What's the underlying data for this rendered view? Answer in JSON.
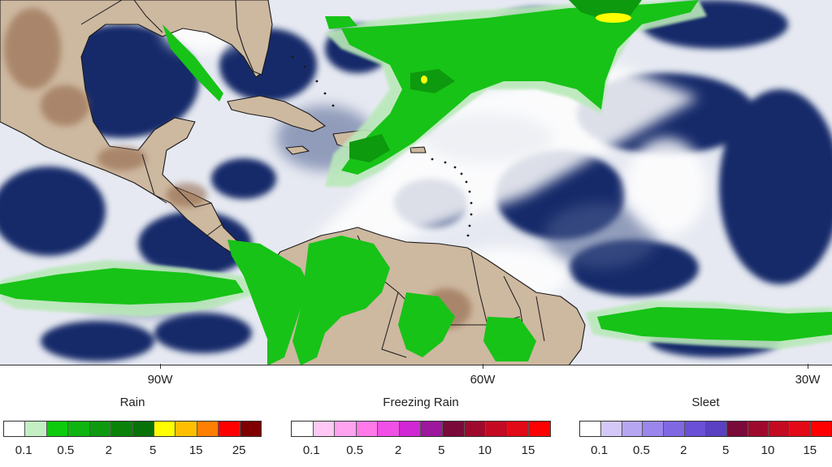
{
  "map": {
    "axis": {
      "longitude_labels": [
        "90W",
        "60W",
        "30W"
      ]
    },
    "colors": {
      "ocean_dark": "#13296b",
      "ocean_mid": "#5b6d9c",
      "cloud_light": "#dfe3ee",
      "land": "#c9b49a",
      "land_high": "#8a5a3a",
      "precip_green": "#1ec81e",
      "precip_light_green": "#b9e8b9"
    }
  },
  "legends": [
    {
      "id": "rain",
      "title": "Rain",
      "colors": [
        "#ffffff",
        "#c4efc4",
        "#0ecb0e",
        "#10b410",
        "#0e9a0e",
        "#0a820a",
        "#087208",
        "#ffff00",
        "#ffbf00",
        "#ff7f00",
        "#ff0000",
        "#7f0000"
      ],
      "labels": [
        "0.1",
        "0.5",
        "2",
        "5",
        "15",
        "25"
      ]
    },
    {
      "id": "freezing-rain",
      "title": "Freezing Rain",
      "colors": [
        "#ffffff",
        "#ffc8f5",
        "#ffa3f1",
        "#ff7ae8",
        "#f050e6",
        "#d028d2",
        "#9c189c",
        "#7a0a3a",
        "#9e0a2e",
        "#c40a22",
        "#e20a16",
        "#ff0000"
      ],
      "labels": [
        "0.1",
        "0.5",
        "2",
        "5",
        "10",
        "15"
      ]
    },
    {
      "id": "sleet",
      "title": "Sleet",
      "colors": [
        "#ffffff",
        "#d3c8f7",
        "#b6a6f2",
        "#9a86ec",
        "#8068e3",
        "#6a50d6",
        "#5a40c2",
        "#7a0a3a",
        "#9e0a2e",
        "#c40a22",
        "#e20a16",
        "#ff0000"
      ],
      "labels": [
        "0.1",
        "0.5",
        "2",
        "5",
        "10",
        "15"
      ]
    }
  ]
}
